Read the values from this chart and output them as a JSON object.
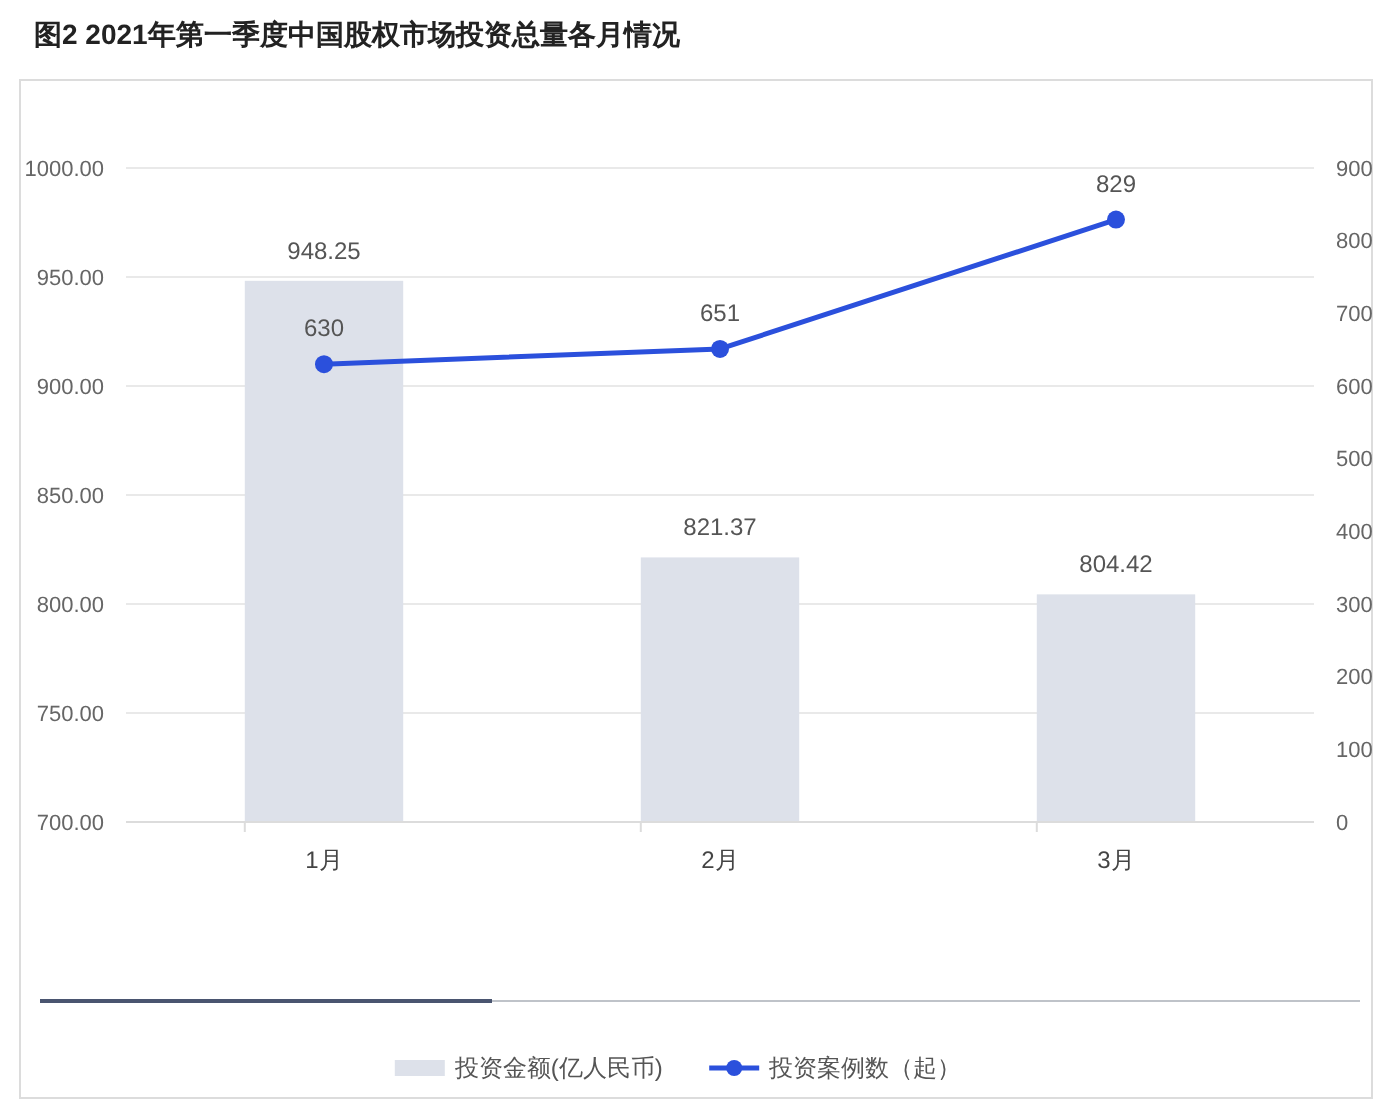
{
  "chart_data": {
    "type": "bar",
    "title": "图2 2021年第一季度中国股权市场投资总量各月情况",
    "categories": [
      "1月",
      "2月",
      "3月"
    ],
    "series": [
      {
        "name": "投资金额(亿人民币)",
        "color": "#dde1ea",
        "values": [
          948.25,
          821.37,
          804.42
        ]
      },
      {
        "name": "投资案例数（起）",
        "type": "line",
        "axis": "y2",
        "color": "#2b50dc",
        "values": [
          630,
          651,
          829
        ]
      }
    ],
    "ylim": [
      700,
      1000
    ],
    "yticks": [
      {
        "value": 700,
        "label": "700.00"
      },
      {
        "value": 750,
        "label": "750.00"
      },
      {
        "value": 800,
        "label": "800.00"
      },
      {
        "value": 850,
        "label": "850.00"
      },
      {
        "value": 900,
        "label": "900.00"
      },
      {
        "value": 950,
        "label": "950.00"
      },
      {
        "value": 1000,
        "label": "1000.00"
      }
    ],
    "y2lim": [
      0,
      900
    ],
    "y2ticks": [
      0,
      100,
      200,
      300,
      400,
      500,
      600,
      700,
      800,
      900
    ],
    "grid": "y",
    "legend": "bottom",
    "marker": "circle",
    "line_style": "solid",
    "data_labels": true
  }
}
